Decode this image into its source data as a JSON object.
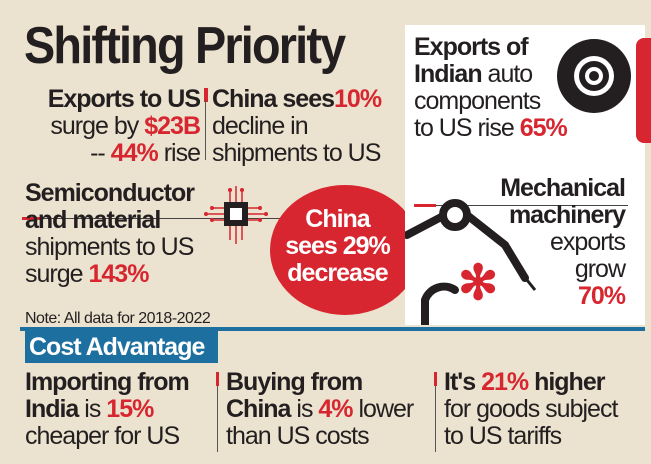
{
  "title": "Shifting Priority",
  "exports_us": {
    "l1": "Exports to US",
    "l2a": "surge by ",
    "l2b": "$23B",
    "l3a": "-- ",
    "l3b": "44%",
    "l3c": " rise"
  },
  "china_sees": {
    "l1a": "China sees",
    "l1b": "10%",
    "l2": "decline in",
    "l3": "shipments to US"
  },
  "semi": {
    "l1": "Semiconductor",
    "l2": "and material",
    "l3": "shipments to US",
    "l4a": "surge ",
    "l4b": "143%"
  },
  "note": "Note: All data for 2018-2022",
  "china_circle": {
    "l1": "China",
    "l2": "sees 29%",
    "l3": "decrease"
  },
  "auto": {
    "l1": "Exports of",
    "l2a": "Indian",
    "l2b": " auto",
    "l3": "components",
    "l4a": "to US rise ",
    "l4b": "65%"
  },
  "machinery": {
    "l1": "Mechanical",
    "l2": "machinery",
    "l3": "exports",
    "l4": "grow",
    "l5": "70%"
  },
  "cost": {
    "heading": "Cost Advantage",
    "c1": {
      "l1": "Importing from",
      "l2a": "India",
      "l2b": " is ",
      "l2c": "15%",
      "l3": "cheaper for US"
    },
    "c2": {
      "l1": "Buying from",
      "l2a": "China",
      "l2b": " is ",
      "l2c": "4%",
      "l2d": " lower",
      "l3": "than US costs"
    },
    "c3": {
      "l1a": "It's ",
      "l1b": "21%",
      "l1c": " higher",
      "l2": "for goods subject",
      "l3": "to US tariffs"
    }
  },
  "colors": {
    "accent": "#d7262f",
    "blue": "#1d6fa0",
    "bg": "#ebe3cf"
  }
}
